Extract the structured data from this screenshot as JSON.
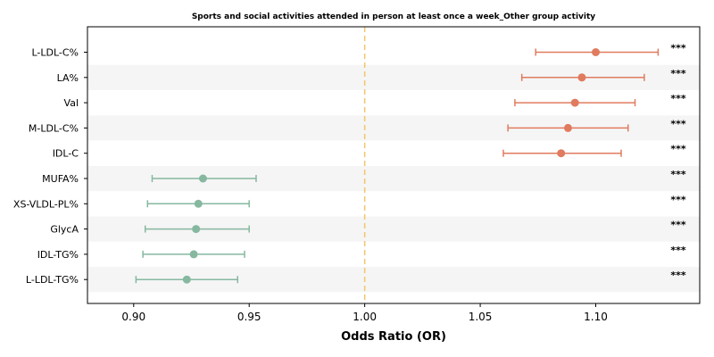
{
  "chart_data": {
    "type": "forest",
    "title": "Sports and social activities attended in person at least once a week_Other group activity",
    "xlabel": "Odds Ratio (OR)",
    "xlim": [
      0.88,
      1.145
    ],
    "xticks": [
      "0.90",
      "0.95",
      "1.00",
      "1.05",
      "1.10"
    ],
    "reference_line": 1.0,
    "colors": {
      "positive": "#e07b5f",
      "negative": "#86b8a0",
      "reference": "#f3c56b",
      "stripe": "#f5f5f5"
    },
    "rows": [
      {
        "label": "L-LDL-C%",
        "or": 1.1,
        "lo": 1.074,
        "hi": 1.127,
        "sig": "***"
      },
      {
        "label": "LA%",
        "or": 1.094,
        "lo": 1.068,
        "hi": 1.121,
        "sig": "***"
      },
      {
        "label": "Val",
        "or": 1.091,
        "lo": 1.065,
        "hi": 1.117,
        "sig": "***"
      },
      {
        "label": "M-LDL-C%",
        "or": 1.088,
        "lo": 1.062,
        "hi": 1.114,
        "sig": "***"
      },
      {
        "label": "IDL-C",
        "or": 1.085,
        "lo": 1.06,
        "hi": 1.111,
        "sig": "***"
      },
      {
        "label": "MUFA%",
        "or": 0.93,
        "lo": 0.908,
        "hi": 0.953,
        "sig": "***"
      },
      {
        "label": "XS-VLDL-PL%",
        "or": 0.928,
        "lo": 0.906,
        "hi": 0.95,
        "sig": "***"
      },
      {
        "label": "GlycA",
        "or": 0.927,
        "lo": 0.905,
        "hi": 0.95,
        "sig": "***"
      },
      {
        "label": "IDL-TG%",
        "or": 0.926,
        "lo": 0.904,
        "hi": 0.948,
        "sig": "***"
      },
      {
        "label": "L-LDL-TG%",
        "or": 0.923,
        "lo": 0.901,
        "hi": 0.945,
        "sig": "***"
      }
    ]
  }
}
